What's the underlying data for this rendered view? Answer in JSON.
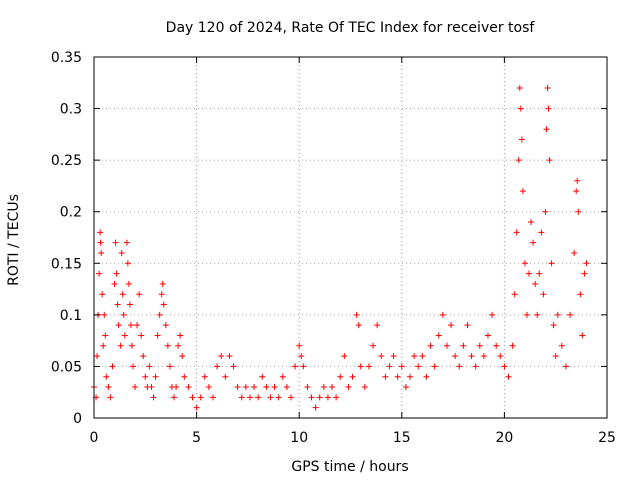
{
  "chart_data": {
    "type": "scatter",
    "title": "Day 120 of 2024, Rate Of TEC Index for receiver tosf",
    "xlabel": "GPS time / hours",
    "ylabel": "ROTI / TECUs",
    "xlim": [
      0,
      25
    ],
    "ylim": [
      0,
      0.35
    ],
    "xticks": [
      0,
      5,
      10,
      15,
      20,
      25
    ],
    "yticks": [
      0,
      0.05,
      0.1,
      0.15,
      0.2,
      0.25,
      0.3,
      0.35
    ],
    "xtick_labels": [
      "0",
      "5",
      "10",
      "15",
      "20",
      "25"
    ],
    "ytick_labels": [
      "0",
      "0.05",
      "0.1",
      "0.15",
      "0.2",
      "0.25",
      "0.3",
      "0.35"
    ],
    "grid": true,
    "marker": "+",
    "color": "#ff0000",
    "series": [
      {
        "name": "ROTI",
        "points": [
          [
            0.0,
            0.03
          ],
          [
            0.1,
            0.02
          ],
          [
            0.15,
            0.06
          ],
          [
            0.2,
            0.1
          ],
          [
            0.25,
            0.14
          ],
          [
            0.3,
            0.18
          ],
          [
            0.32,
            0.17
          ],
          [
            0.35,
            0.16
          ],
          [
            0.4,
            0.12
          ],
          [
            0.45,
            0.07
          ],
          [
            0.5,
            0.1
          ],
          [
            0.55,
            0.08
          ],
          [
            0.6,
            0.04
          ],
          [
            0.7,
            0.03
          ],
          [
            0.8,
            0.02
          ],
          [
            0.9,
            0.05
          ],
          [
            1.0,
            0.13
          ],
          [
            1.05,
            0.17
          ],
          [
            1.1,
            0.14
          ],
          [
            1.15,
            0.11
          ],
          [
            1.2,
            0.09
          ],
          [
            1.3,
            0.07
          ],
          [
            1.35,
            0.16
          ],
          [
            1.4,
            0.12
          ],
          [
            1.45,
            0.1
          ],
          [
            1.5,
            0.08
          ],
          [
            1.6,
            0.17
          ],
          [
            1.65,
            0.15
          ],
          [
            1.7,
            0.13
          ],
          [
            1.75,
            0.11
          ],
          [
            1.8,
            0.09
          ],
          [
            1.85,
            0.07
          ],
          [
            1.9,
            0.05
          ],
          [
            2.0,
            0.03
          ],
          [
            2.1,
            0.09
          ],
          [
            2.2,
            0.12
          ],
          [
            2.3,
            0.08
          ],
          [
            2.4,
            0.06
          ],
          [
            2.5,
            0.04
          ],
          [
            2.6,
            0.03
          ],
          [
            2.7,
            0.05
          ],
          [
            2.8,
            0.03
          ],
          [
            2.9,
            0.02
          ],
          [
            3.0,
            0.04
          ],
          [
            3.1,
            0.08
          ],
          [
            3.2,
            0.1
          ],
          [
            3.3,
            0.12
          ],
          [
            3.35,
            0.13
          ],
          [
            3.4,
            0.11
          ],
          [
            3.5,
            0.09
          ],
          [
            3.6,
            0.07
          ],
          [
            3.7,
            0.05
          ],
          [
            3.8,
            0.03
          ],
          [
            3.9,
            0.02
          ],
          [
            4.0,
            0.03
          ],
          [
            4.1,
            0.07
          ],
          [
            4.2,
            0.08
          ],
          [
            4.3,
            0.06
          ],
          [
            4.4,
            0.04
          ],
          [
            4.6,
            0.03
          ],
          [
            4.8,
            0.02
          ],
          [
            5.0,
            0.01
          ],
          [
            5.2,
            0.02
          ],
          [
            5.4,
            0.04
          ],
          [
            5.6,
            0.03
          ],
          [
            5.8,
            0.02
          ],
          [
            6.0,
            0.05
          ],
          [
            6.2,
            0.06
          ],
          [
            6.4,
            0.04
          ],
          [
            6.6,
            0.06
          ],
          [
            6.8,
            0.05
          ],
          [
            7.0,
            0.03
          ],
          [
            7.2,
            0.02
          ],
          [
            7.4,
            0.03
          ],
          [
            7.6,
            0.02
          ],
          [
            7.8,
            0.03
          ],
          [
            8.0,
            0.02
          ],
          [
            8.2,
            0.04
          ],
          [
            8.4,
            0.03
          ],
          [
            8.6,
            0.02
          ],
          [
            8.8,
            0.03
          ],
          [
            9.0,
            0.02
          ],
          [
            9.2,
            0.04
          ],
          [
            9.4,
            0.03
          ],
          [
            9.6,
            0.02
          ],
          [
            9.8,
            0.05
          ],
          [
            10.0,
            0.07
          ],
          [
            10.1,
            0.06
          ],
          [
            10.2,
            0.05
          ],
          [
            10.4,
            0.03
          ],
          [
            10.6,
            0.02
          ],
          [
            10.8,
            0.01
          ],
          [
            11.0,
            0.02
          ],
          [
            11.2,
            0.03
          ],
          [
            11.4,
            0.02
          ],
          [
            11.6,
            0.03
          ],
          [
            11.8,
            0.02
          ],
          [
            12.0,
            0.04
          ],
          [
            12.2,
            0.06
          ],
          [
            12.4,
            0.03
          ],
          [
            12.6,
            0.04
          ],
          [
            12.8,
            0.1
          ],
          [
            12.9,
            0.09
          ],
          [
            13.0,
            0.05
          ],
          [
            13.2,
            0.03
          ],
          [
            13.4,
            0.05
          ],
          [
            13.6,
            0.07
          ],
          [
            13.8,
            0.09
          ],
          [
            14.0,
            0.06
          ],
          [
            14.2,
            0.04
          ],
          [
            14.4,
            0.05
          ],
          [
            14.6,
            0.06
          ],
          [
            14.8,
            0.04
          ],
          [
            15.0,
            0.05
          ],
          [
            15.2,
            0.03
          ],
          [
            15.4,
            0.04
          ],
          [
            15.6,
            0.06
          ],
          [
            15.8,
            0.05
          ],
          [
            16.0,
            0.06
          ],
          [
            16.2,
            0.04
          ],
          [
            16.4,
            0.07
          ],
          [
            16.6,
            0.05
          ],
          [
            16.8,
            0.08
          ],
          [
            17.0,
            0.1
          ],
          [
            17.2,
            0.07
          ],
          [
            17.4,
            0.09
          ],
          [
            17.6,
            0.06
          ],
          [
            17.8,
            0.05
          ],
          [
            18.0,
            0.07
          ],
          [
            18.2,
            0.09
          ],
          [
            18.4,
            0.06
          ],
          [
            18.6,
            0.05
          ],
          [
            18.8,
            0.07
          ],
          [
            19.0,
            0.06
          ],
          [
            19.2,
            0.08
          ],
          [
            19.4,
            0.1
          ],
          [
            19.6,
            0.07
          ],
          [
            19.8,
            0.06
          ],
          [
            20.0,
            0.05
          ],
          [
            20.2,
            0.04
          ],
          [
            20.4,
            0.07
          ],
          [
            20.5,
            0.12
          ],
          [
            20.6,
            0.18
          ],
          [
            20.7,
            0.25
          ],
          [
            20.75,
            0.32
          ],
          [
            20.8,
            0.3
          ],
          [
            20.85,
            0.27
          ],
          [
            20.9,
            0.22
          ],
          [
            21.0,
            0.15
          ],
          [
            21.1,
            0.1
          ],
          [
            21.2,
            0.14
          ],
          [
            21.3,
            0.19
          ],
          [
            21.4,
            0.17
          ],
          [
            21.5,
            0.13
          ],
          [
            21.6,
            0.1
          ],
          [
            21.7,
            0.14
          ],
          [
            21.8,
            0.18
          ],
          [
            21.9,
            0.12
          ],
          [
            22.0,
            0.2
          ],
          [
            22.05,
            0.28
          ],
          [
            22.1,
            0.32
          ],
          [
            22.15,
            0.3
          ],
          [
            22.2,
            0.25
          ],
          [
            22.3,
            0.15
          ],
          [
            22.4,
            0.09
          ],
          [
            22.5,
            0.06
          ],
          [
            22.6,
            0.1
          ],
          [
            22.8,
            0.07
          ],
          [
            23.0,
            0.05
          ],
          [
            23.2,
            0.1
          ],
          [
            23.4,
            0.16
          ],
          [
            23.5,
            0.22
          ],
          [
            23.55,
            0.23
          ],
          [
            23.6,
            0.2
          ],
          [
            23.7,
            0.12
          ],
          [
            23.8,
            0.08
          ],
          [
            23.9,
            0.14
          ],
          [
            24.0,
            0.15
          ]
        ]
      }
    ]
  }
}
